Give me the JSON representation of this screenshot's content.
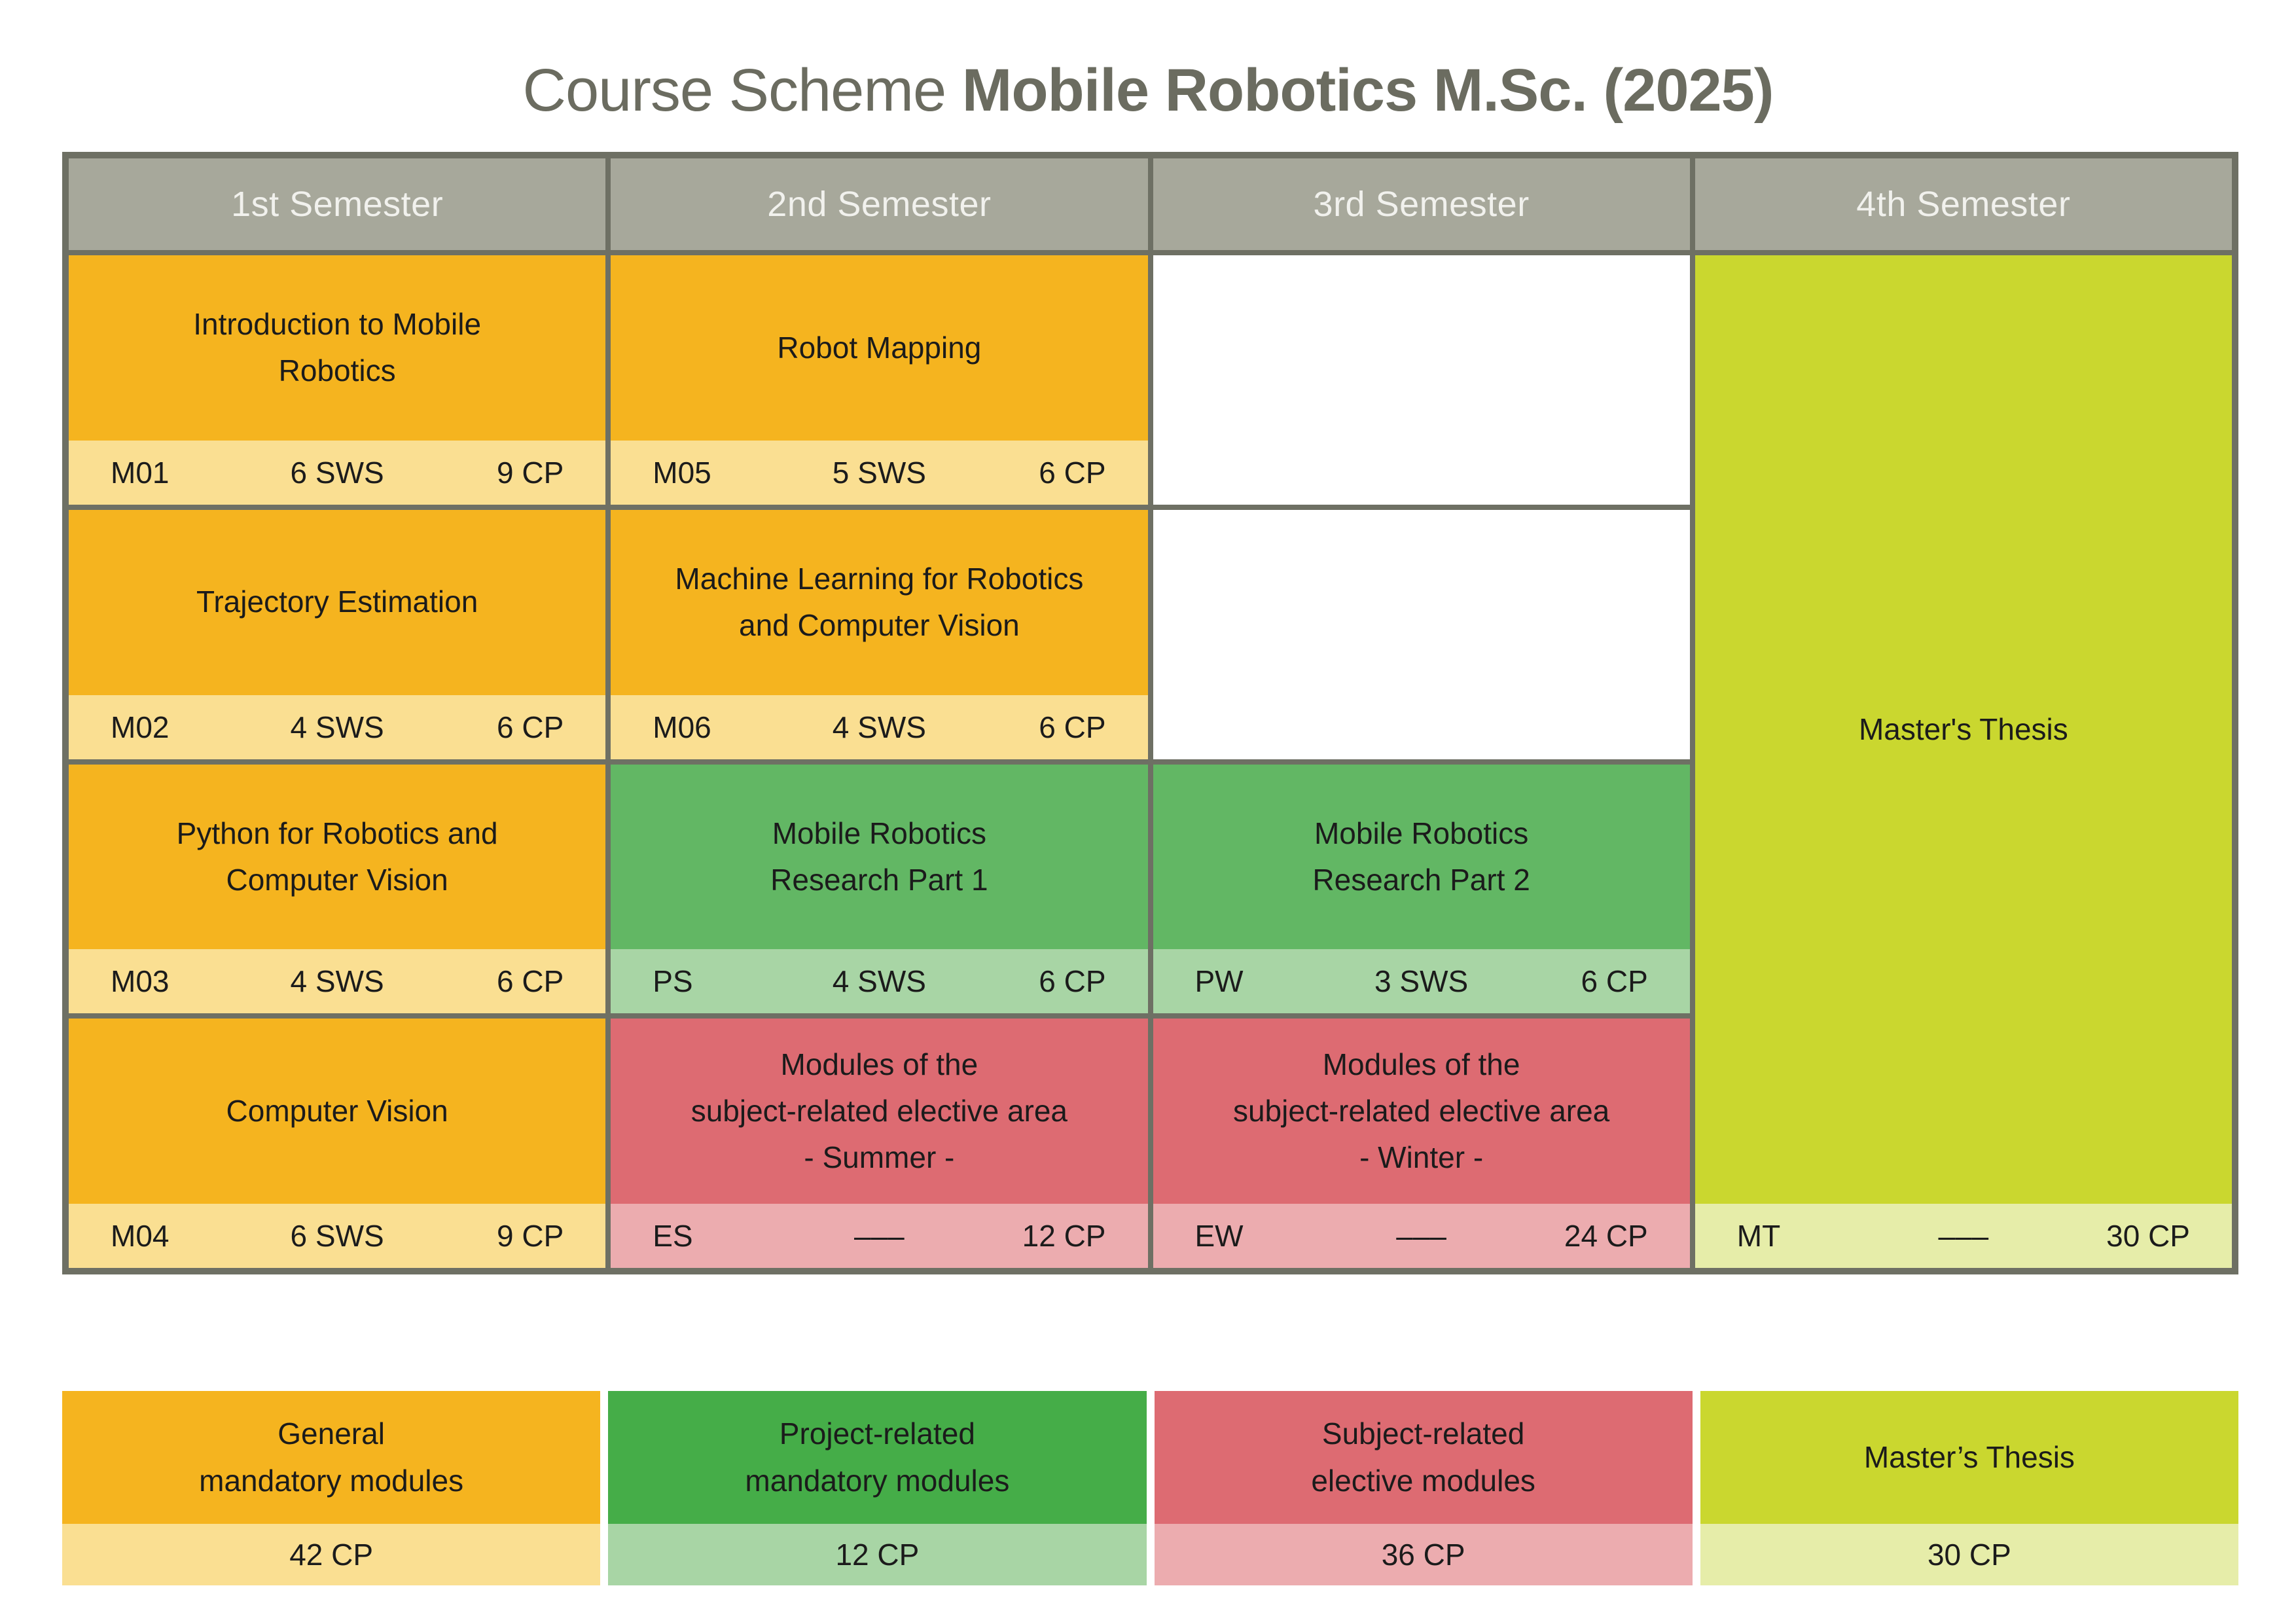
{
  "title": {
    "regular": "Course Scheme ",
    "bold": "Mobile Robotics M.Sc. (2025)"
  },
  "colors": {
    "title_text": "#6B6C60",
    "border": "#6E7064",
    "header_bg": "#A7A89B",
    "header_text": "#F1F1ED",
    "empty_bg": "#FFFFFF",
    "orange_body": "#F5B41F",
    "orange_footer": "#FADF92",
    "green_body": "#62B764",
    "green_footer": "#A8D5A5",
    "green_legend_body": "#45AD48",
    "red_body": "#DD6B72",
    "red_footer": "#ECACAF",
    "lime_body": "#CAD72F",
    "lime_footer": "#E6EDA9"
  },
  "semesters": [
    "1st Semester",
    "2nd Semester",
    "3rd Semester",
    "4th Semester"
  ],
  "columns": [
    {
      "cells": [
        {
          "type": "module",
          "color": "orange",
          "title": "Introduction to Mobile\nRobotics",
          "code": "M01",
          "sws": "6 SWS",
          "cp": "9 CP"
        },
        {
          "type": "module",
          "color": "orange",
          "title": "Trajectory Estimation",
          "code": "M02",
          "sws": "4 SWS",
          "cp": "6 CP"
        },
        {
          "type": "module",
          "color": "orange",
          "title": "Python for Robotics and\nComputer Vision",
          "code": "M03",
          "sws": "4 SWS",
          "cp": "6 CP"
        },
        {
          "type": "module",
          "color": "orange",
          "title": "Computer Vision",
          "code": "M04",
          "sws": "6 SWS",
          "cp": "9 CP"
        }
      ]
    },
    {
      "cells": [
        {
          "type": "module",
          "color": "orange",
          "title": "Robot Mapping",
          "code": "M05",
          "sws": "5 SWS",
          "cp": "6 CP"
        },
        {
          "type": "module",
          "color": "orange",
          "title": "Machine Learning for Robotics\nand Computer Vision",
          "code": "M06",
          "sws": "4 SWS",
          "cp": "6 CP"
        },
        {
          "type": "module",
          "color": "green",
          "title": "Mobile Robotics\nResearch Part 1",
          "code": "PS",
          "sws": "4 SWS",
          "cp": "6 CP"
        },
        {
          "type": "module",
          "color": "red",
          "title": "Modules of the\nsubject-related  elective area\n- Summer -",
          "code": "ES",
          "sws": "–––",
          "cp": "12 CP"
        }
      ]
    },
    {
      "cells": [
        {
          "type": "empty"
        },
        {
          "type": "empty"
        },
        {
          "type": "module",
          "color": "green",
          "title": "Mobile Robotics\nResearch Part 2",
          "code": "PW",
          "sws": "3 SWS",
          "cp": "6 CP"
        },
        {
          "type": "module",
          "color": "red",
          "title": "Modules of the\nsubject-related elective area\n- Winter -",
          "code": "EW",
          "sws": "–––",
          "cp": "24 CP"
        }
      ]
    },
    {
      "cells": [
        {
          "type": "module",
          "color": "lime",
          "row_span": 4,
          "title": "Master's Thesis",
          "code": "MT",
          "sws": "–––",
          "cp": "30 CP"
        }
      ]
    }
  ],
  "legend": [
    {
      "label": "General\nmandatory modules",
      "color": "orange",
      "cp": "42 CP"
    },
    {
      "label": "Project-related\nmandatory modules",
      "color": "green",
      "cp": "12 CP"
    },
    {
      "label": "Subject-related\nelective modules",
      "color": "red",
      "cp": "36 CP"
    },
    {
      "label": "Master’s Thesis",
      "color": "lime",
      "cp": "30 CP"
    }
  ]
}
